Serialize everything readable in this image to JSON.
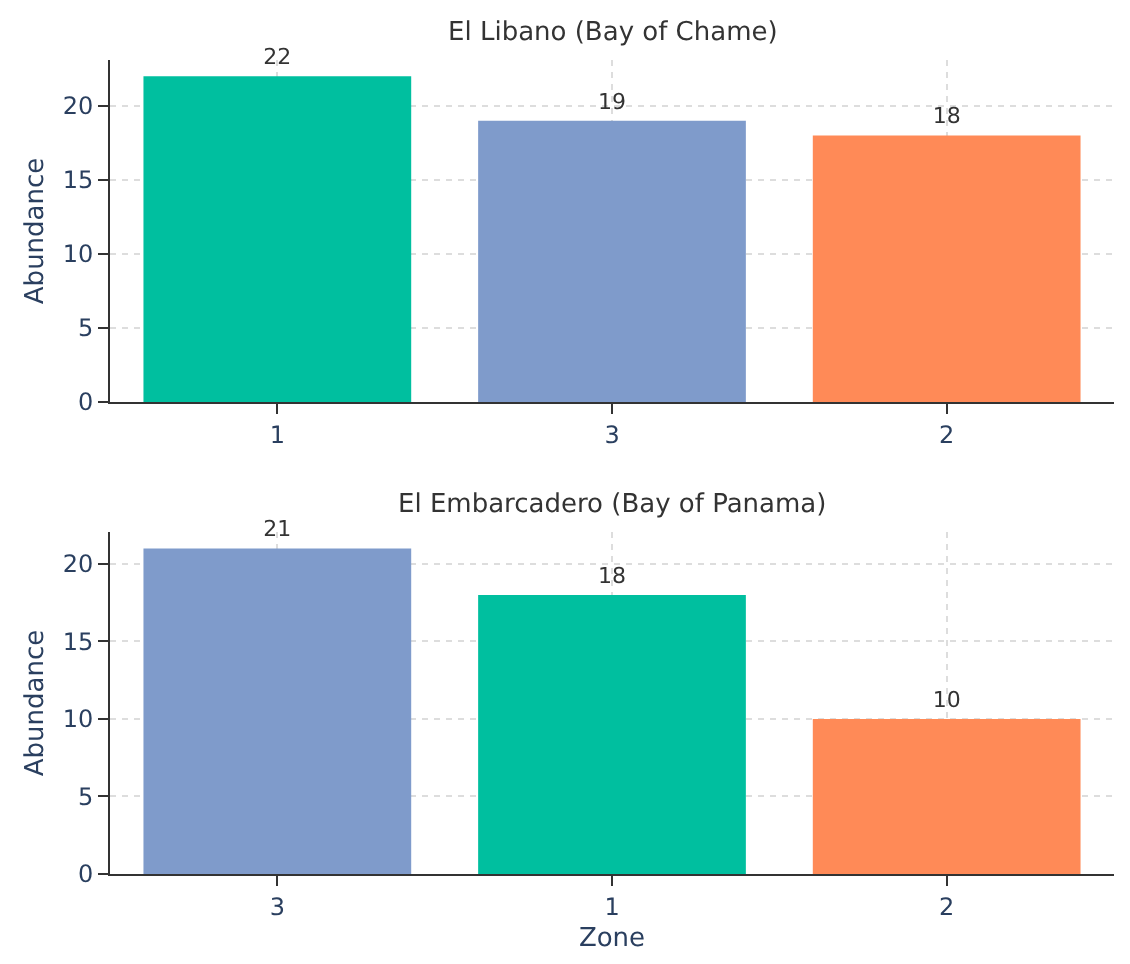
{
  "chart_data": [
    {
      "type": "bar",
      "title": "El Libano (Bay of Chame)",
      "ylabel": "Abundance",
      "categories": [
        "1",
        "3",
        "2"
      ],
      "values": [
        22,
        19,
        18
      ],
      "colors": [
        "#00bf9f",
        "#7f9bcb",
        "#ff8a57"
      ],
      "ylim": [
        0,
        23.1
      ],
      "yticks": [
        0,
        5,
        10,
        15,
        20
      ],
      "grid": true,
      "data_labels": true
    },
    {
      "type": "bar",
      "title": "El Embarcadero (Bay of Panama)",
      "xlabel": "Zone",
      "ylabel": "Abundance",
      "categories": [
        "3",
        "1",
        "2"
      ],
      "values": [
        21,
        18,
        10
      ],
      "colors": [
        "#7f9bcb",
        "#00bf9f",
        "#ff8a57"
      ],
      "ylim": [
        0,
        22.05
      ],
      "yticks": [
        0,
        5,
        10,
        15,
        20
      ],
      "grid": true,
      "data_labels": true
    }
  ]
}
